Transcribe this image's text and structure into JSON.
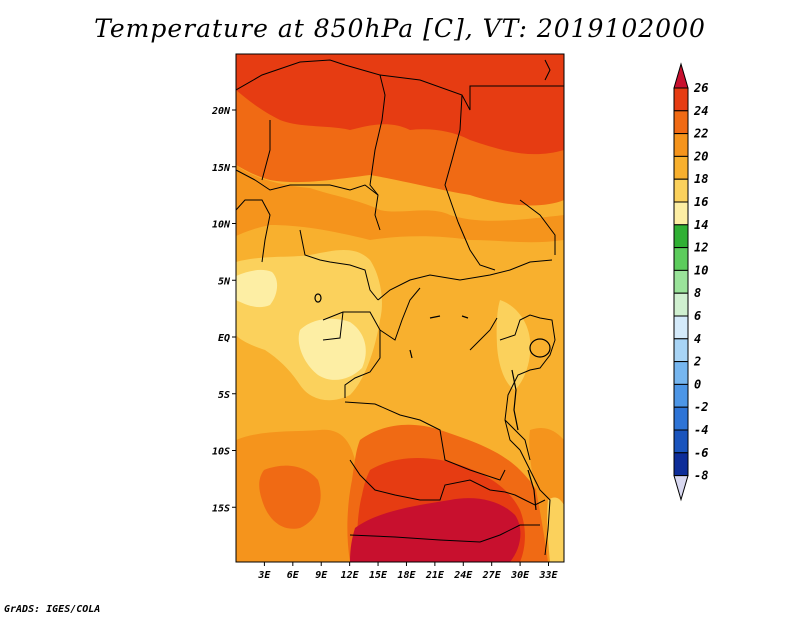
{
  "title": "Temperature at 850hPa [C], VT: 2019102000",
  "credit": "GrADS: IGES/COLA",
  "map": {
    "lat_ticks": [
      {
        "label": "20N",
        "lat": 20
      },
      {
        "label": "15N",
        "lat": 15
      },
      {
        "label": "10N",
        "lat": 10
      },
      {
        "label": "5N",
        "lat": 5
      },
      {
        "label": "EQ",
        "lat": 0
      },
      {
        "label": "5S",
        "lat": -5
      },
      {
        "label": "10S",
        "lat": -10
      },
      {
        "label": "15S",
        "lat": -15
      }
    ],
    "lon_ticks": [
      {
        "label": "3E",
        "lon": 3
      },
      {
        "label": "6E",
        "lon": 6
      },
      {
        "label": "9E",
        "lon": 9
      },
      {
        "label": "12E",
        "lon": 12
      },
      {
        "label": "15E",
        "lon": 15
      },
      {
        "label": "18E",
        "lon": 18
      },
      {
        "label": "21E",
        "lon": 21
      },
      {
        "label": "24E",
        "lon": 24
      },
      {
        "label": "27E",
        "lon": 27
      },
      {
        "label": "30E",
        "lon": 30
      },
      {
        "label": "33E",
        "lon": 33
      }
    ]
  },
  "colorbar": {
    "labels": [
      "26",
      "24",
      "22",
      "20",
      "18",
      "16",
      "14",
      "12",
      "10",
      "8",
      "6",
      "4",
      "2",
      "0",
      "-2",
      "-4",
      "-6",
      "-8"
    ],
    "colors": [
      "#c8102e",
      "#e63c12",
      "#f06a14",
      "#f5941c",
      "#f8b02e",
      "#fbd15c",
      "#fdeea4",
      "#30b034",
      "#5ccc5c",
      "#9ae39a",
      "#d0f0d0",
      "#d4eafa",
      "#a8d4f5",
      "#76b6ef",
      "#4d96e6",
      "#2e74d6",
      "#1a54bd",
      "#0d2d99",
      "#060e6b",
      "#d8d8f0"
    ]
  }
}
